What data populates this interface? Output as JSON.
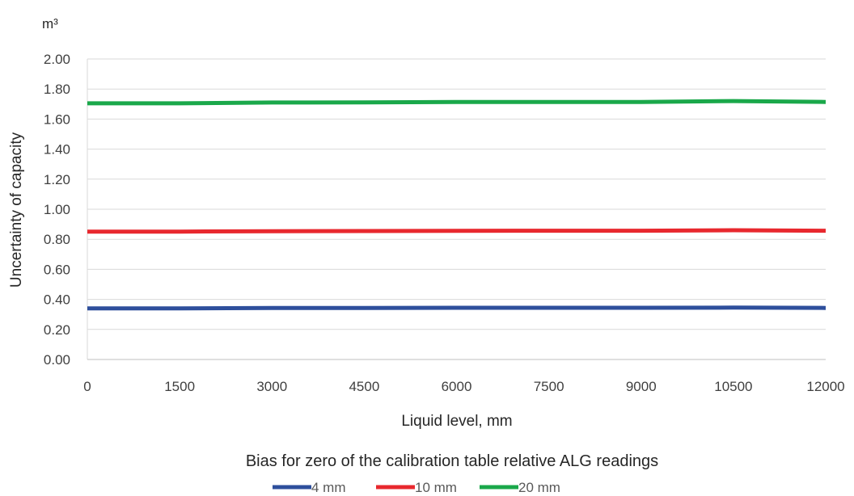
{
  "chart_data": {
    "type": "line",
    "unit_label": "m³",
    "xlabel": "Liquid level, mm",
    "ylabel": "Uncertainty of capacity",
    "legend_title": "Bias for zero of the calibration table relative ALG readings",
    "legend_position": "bottom",
    "grid": true,
    "xlim": [
      0,
      12000
    ],
    "ylim": [
      0,
      2
    ],
    "x_ticks": [
      "0",
      "1500",
      "3000",
      "4500",
      "6000",
      "7500",
      "9000",
      "10500",
      "12000"
    ],
    "y_ticks": [
      "0.00",
      "0.20",
      "0.40",
      "0.60",
      "0.80",
      "1.00",
      "1.20",
      "1.40",
      "1.60",
      "1.80",
      "2.00"
    ],
    "x": [
      0,
      1500,
      3000,
      4500,
      6000,
      7500,
      9000,
      10500,
      12000
    ],
    "series": [
      {
        "name": "4 mm",
        "color": "#2e4f9c",
        "values": [
          0.34,
          0.34,
          0.343,
          0.343,
          0.344,
          0.344,
          0.344,
          0.345,
          0.343
        ]
      },
      {
        "name": "10 mm",
        "color": "#e8282e",
        "values": [
          0.851,
          0.851,
          0.854,
          0.855,
          0.856,
          0.857,
          0.857,
          0.86,
          0.857
        ]
      },
      {
        "name": "20 mm",
        "color": "#1aa84a",
        "values": [
          1.705,
          1.705,
          1.71,
          1.711,
          1.714,
          1.714,
          1.714,
          1.72,
          1.714
        ]
      }
    ]
  }
}
